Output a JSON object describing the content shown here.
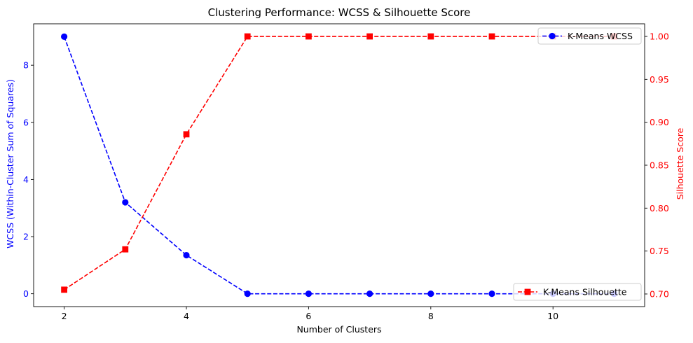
{
  "chart_data": {
    "type": "line",
    "title": "Clustering Performance: WCSS & Silhouette Score",
    "xlabel": "Number of Clusters",
    "ylabel_left": "WCSS (Within-Cluster Sum of Squares)",
    "ylabel_right": "Silhouette Score",
    "x": [
      2,
      3,
      4,
      5,
      6,
      7,
      8,
      9,
      10,
      11
    ],
    "x_ticks": [
      "2",
      "4",
      "6",
      "8",
      "10"
    ],
    "x_tick_values": [
      2,
      4,
      6,
      8,
      10
    ],
    "xlim": [
      1.5,
      11.5
    ],
    "ylim_left": [
      -0.45,
      9.45
    ],
    "ylim_right": [
      0.6853,
      1.0147
    ],
    "left_ticks": [
      "0",
      "2",
      "4",
      "6",
      "8"
    ],
    "left_tick_values": [
      0,
      2,
      4,
      6,
      8
    ],
    "right_ticks": [
      "0.70",
      "0.75",
      "0.80",
      "0.85",
      "0.90",
      "0.95",
      "1.00"
    ],
    "right_tick_values": [
      0.7,
      0.75,
      0.8,
      0.85,
      0.9,
      0.95,
      1.0
    ],
    "grid": false,
    "series": [
      {
        "name": "K-Means WCSS",
        "axis": "left",
        "color": "#0000ff",
        "marker": "circle",
        "linestyle": "dashed",
        "legend": "top-right",
        "values": [
          9.0,
          3.2,
          1.35,
          0.0,
          0.0,
          0.0,
          0.0,
          0.0,
          0.0,
          0.0
        ]
      },
      {
        "name": "K-Means Silhouette",
        "axis": "right",
        "color": "#ff0000",
        "marker": "square",
        "linestyle": "dashed",
        "legend": "bottom-right",
        "values": [
          0.705,
          0.752,
          0.886,
          1.0,
          1.0,
          1.0,
          1.0,
          1.0,
          1.0,
          1.0
        ]
      }
    ]
  }
}
